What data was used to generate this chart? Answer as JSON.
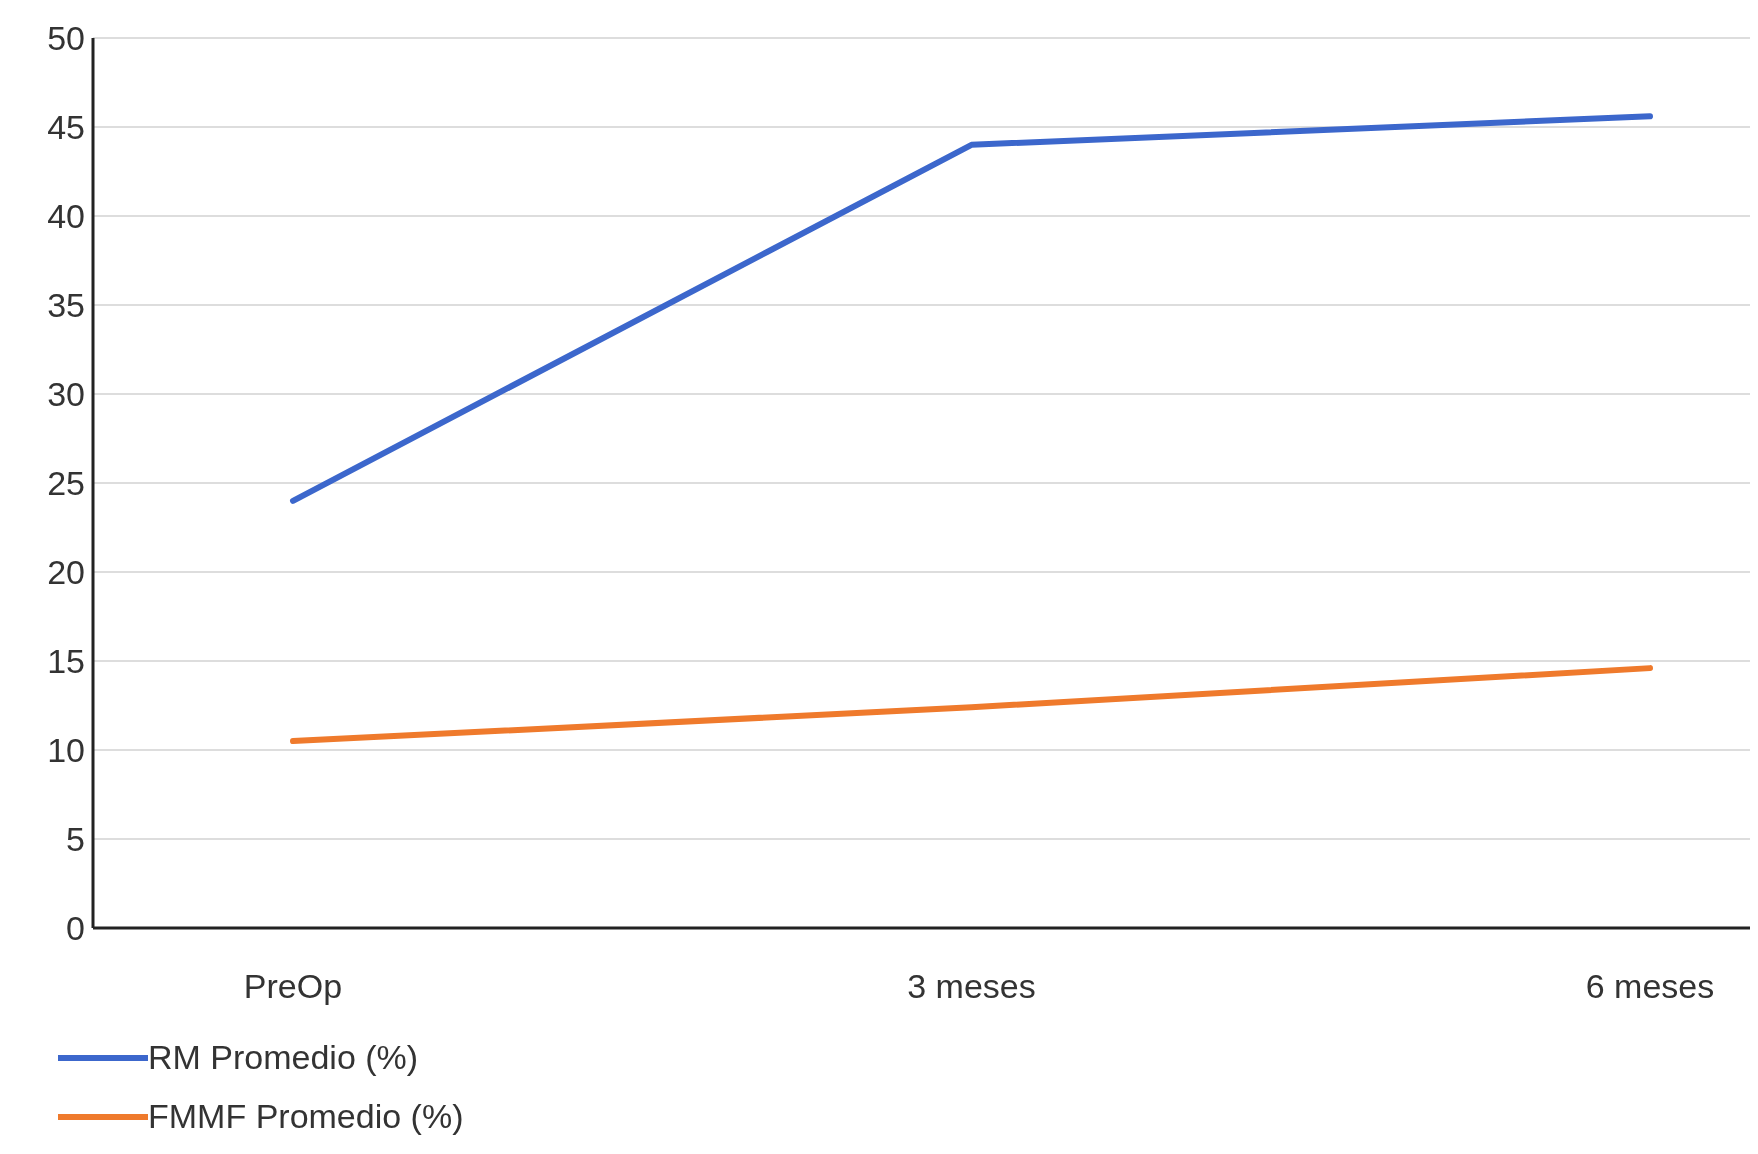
{
  "chart_data": {
    "type": "line",
    "categories": [
      "PreOp",
      "3 meses",
      "6 meses"
    ],
    "series": [
      {
        "name": "RM Promedio (%)",
        "color": "#3c67cc",
        "values": [
          24,
          44,
          45.6
        ]
      },
      {
        "name": "FMMF Promedio (%)",
        "color": "#ef7a2c",
        "values": [
          10.5,
          12.4,
          14.6
        ]
      }
    ],
    "ylim": [
      0,
      50
    ],
    "yticks": [
      0,
      5,
      10,
      15,
      20,
      25,
      30,
      35,
      40,
      45,
      50
    ],
    "grid": "y",
    "legend": "bottom left",
    "marker": "none",
    "line_style": "solid"
  }
}
